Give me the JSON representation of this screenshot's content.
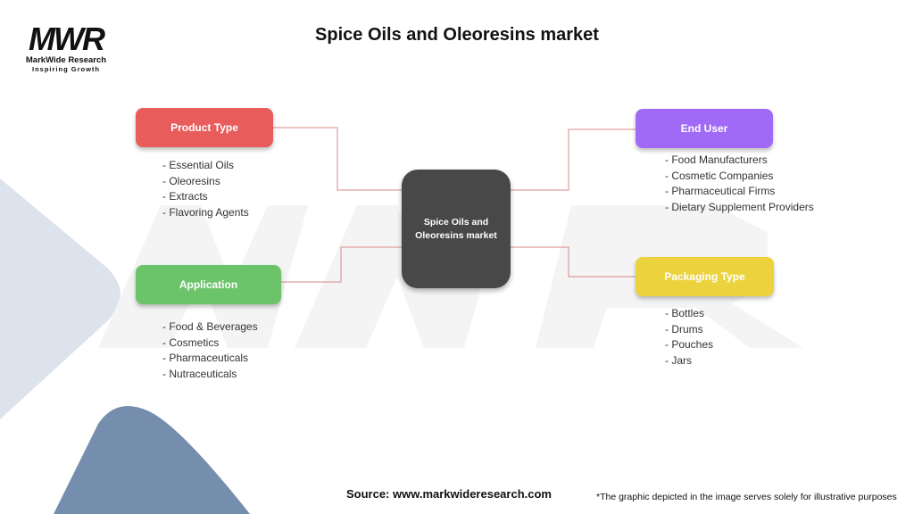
{
  "logo": {
    "mark": "MWR",
    "name": "MarkWide Research",
    "tagline": "Inspiring Growth"
  },
  "title": "Spice Oils and Oleoresins market",
  "center": {
    "label": "Spice Oils and Oleoresins market"
  },
  "colors": {
    "product_type": "#e85c5c",
    "application": "#6cc46a",
    "end_user": "#a06af6",
    "packaging_type": "#ecd23c",
    "center": "#484848",
    "connector": "#d9898a"
  },
  "categories": {
    "product_type": {
      "label": "Product Type",
      "items": [
        "- Essential Oils",
        "- Oleoresins",
        "- Extracts",
        "- Flavoring Agents"
      ]
    },
    "application": {
      "label": "Application",
      "items": [
        "- Food & Beverages",
        "- Cosmetics",
        "- Pharmaceuticals",
        "- Nutraceuticals"
      ]
    },
    "end_user": {
      "label": "End User",
      "items": [
        "- Food Manufacturers",
        "- Cosmetic Companies",
        "- Pharmaceutical Firms",
        "- Dietary Supplement Providers"
      ]
    },
    "packaging_type": {
      "label": "Packaging Type",
      "items": [
        "- Bottles",
        "- Drums",
        "- Pouches",
        "- Jars"
      ]
    }
  },
  "footer": {
    "source": "Source: www.markwideresearch.com",
    "disclaimer": "*The graphic depicted in the image serves solely for illustrative purposes"
  }
}
